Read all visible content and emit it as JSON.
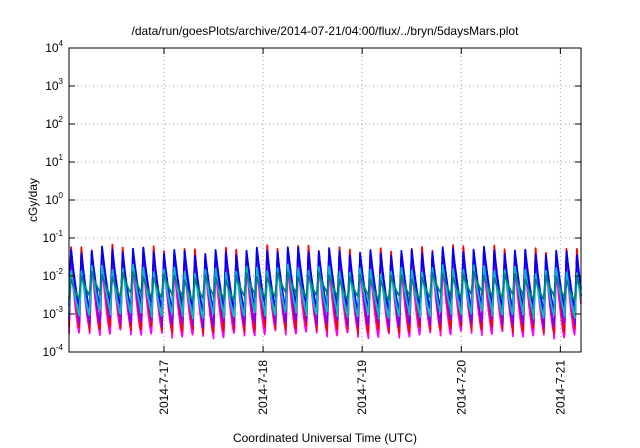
{
  "chart_data": {
    "type": "line",
    "title": "/data/run/goesPlots/archive/2014-07-21/04:00/flux/../bryn/5daysMars.plot",
    "xlabel": "Coordinated Universal Time (UTC)",
    "ylabel": "cGy/day",
    "yscale": "log",
    "ylim": [
      0.0001,
      10000
    ],
    "xlim": [
      "2014-07-16 01:00",
      "2014-07-21 05:00"
    ],
    "y_ticks": [
      {
        "base": "10",
        "exp": "-4"
      },
      {
        "base": "10",
        "exp": "-3"
      },
      {
        "base": "10",
        "exp": "-2"
      },
      {
        "base": "10",
        "exp": "-1"
      },
      {
        "base": "10",
        "exp": "0"
      },
      {
        "base": "10",
        "exp": "1"
      },
      {
        "base": "10",
        "exp": "2"
      },
      {
        "base": "10",
        "exp": "3"
      },
      {
        "base": "10",
        "exp": "4"
      }
    ],
    "x_ticks": [
      {
        "label": "2014-7-17",
        "t": "2014-07-17 00:00"
      },
      {
        "label": "2014-7-18",
        "t": "2014-07-18 00:00"
      },
      {
        "label": "2014-7-19",
        "t": "2014-07-19 00:00"
      },
      {
        "label": "2014-7-20",
        "t": "2014-07-20 00:00"
      },
      {
        "label": "2014-7-21",
        "t": "2014-07-21 00:00"
      }
    ],
    "grid": true,
    "legend": "none",
    "period_hours": 2.5,
    "series": [
      {
        "color": "#ff00ff",
        "peak": 0.02,
        "trough": 0.0003
      },
      {
        "color": "#ff0000",
        "peak": 0.05,
        "trough": 0.0004
      },
      {
        "color": "#8000ff",
        "peak": 0.04,
        "trough": 0.0006
      },
      {
        "color": "#0000ff",
        "peak": 0.045,
        "trough": 0.0015
      },
      {
        "color": "#00c0c0",
        "peak": 0.015,
        "trough": 0.001
      },
      {
        "color": "#008080",
        "peak": 0.01,
        "trough": 0.003
      }
    ]
  }
}
